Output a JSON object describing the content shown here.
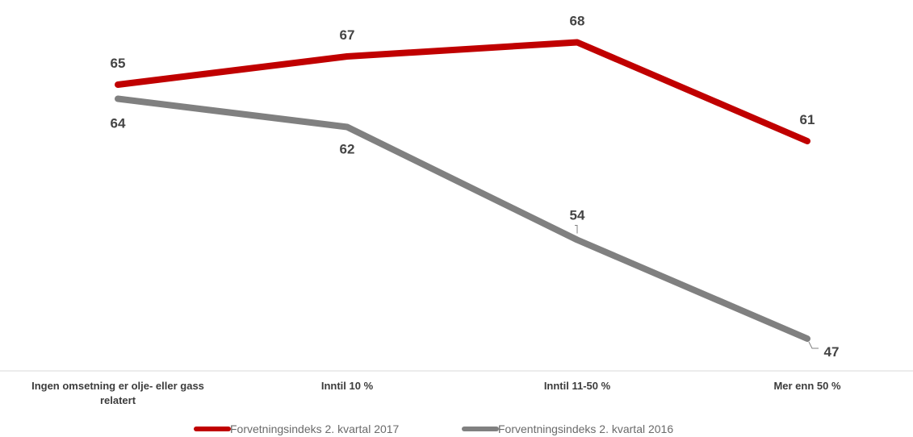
{
  "chart_data": {
    "type": "line",
    "categories": [
      "Ingen omsetning er olje- eller gass relatert",
      "Inntil 10 %",
      "Inntil 11-50 %",
      "Mer enn 50 %"
    ],
    "category_lines": [
      [
        "Ingen omsetning er olje- eller gass",
        "relatert"
      ],
      [
        "Inntil 10 %"
      ],
      [
        "Inntil 11-50 %"
      ],
      [
        "Mer enn 50 %"
      ]
    ],
    "series": [
      {
        "name": "Forvetningsindeks 2. kvartal 2017",
        "values": [
          65,
          67,
          68,
          61
        ],
        "labels": [
          "65",
          "67",
          "68",
          "61"
        ],
        "color": "#c00000"
      },
      {
        "name": "Forventningsindeks 2. kvartal 2016",
        "values": [
          64,
          62,
          54,
          47
        ],
        "labels": [
          "64",
          "62",
          "54",
          "47"
        ],
        "color": "#808080"
      }
    ],
    "legend_position": "bottom",
    "grid": false
  }
}
